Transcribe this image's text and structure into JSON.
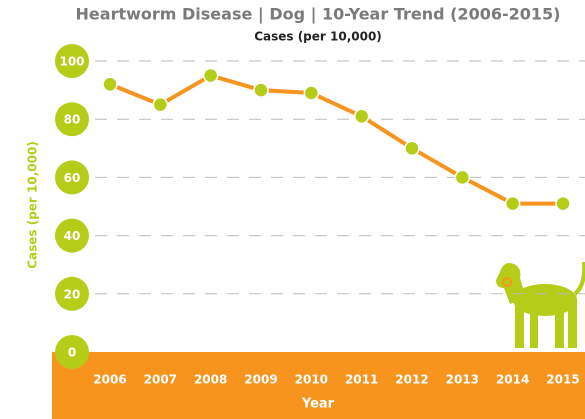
{
  "chart_data": {
    "type": "line",
    "title": "Heartworm Disease | Dog | 10-Year Trend (2006-2015)",
    "subtitle": "Cases (per 10,000)",
    "y_label": "Cases (per 10,000)",
    "x_label": "Year",
    "categories": [
      "2006",
      "2007",
      "2008",
      "2009",
      "2010",
      "2011",
      "2012",
      "2013",
      "2014",
      "2015"
    ],
    "values": [
      92,
      85,
      95,
      90,
      89,
      81,
      70,
      60,
      51,
      51
    ],
    "color": "#f7941d",
    "marker_color": "#b5cc18",
    "ylim": [
      0,
      100
    ],
    "yticks": [
      0,
      20,
      40,
      60,
      80,
      100
    ],
    "grid": true
  }
}
